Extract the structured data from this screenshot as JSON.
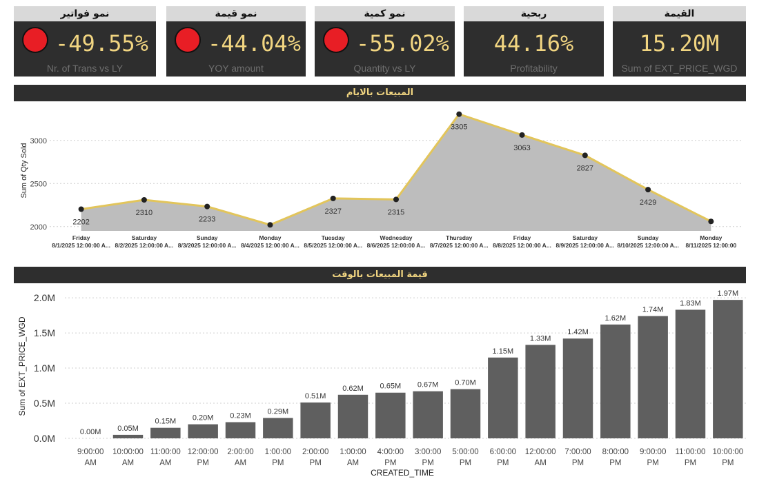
{
  "kpis": [
    {
      "title": "نمو فواتير",
      "value": "-49.55%",
      "subtitle": "Nr. of Trans vs LY",
      "status": "red"
    },
    {
      "title": "نمو قيمة",
      "value": "-44.04%",
      "subtitle": "YOY amount",
      "status": "red"
    },
    {
      "title": "نمو كمية",
      "value": "-55.02%",
      "subtitle": "Quantity vs LY",
      "status": "red"
    },
    {
      "title": "ربحية",
      "value": "44.16%",
      "subtitle": "Profitability"
    },
    {
      "title": "القيمة",
      "value": "15.20M",
      "subtitle": "Sum of EXT_PRICE_WGD"
    }
  ],
  "colors": {
    "panel": "#2e2e2e",
    "accent": "#f1d581",
    "area": "#bdbdbd",
    "line": "#e2c55b",
    "bar": "#5f5f5f",
    "status_red": "#e81e25"
  },
  "chart_data": [
    {
      "type": "area",
      "title": "المبيعات بالايام",
      "ylabel": "Sum of Qty Sold",
      "xlabel": "",
      "ylim": [
        1950,
        3350
      ],
      "yticks": [
        2000,
        2500,
        3000
      ],
      "categories": [
        {
          "day": "Friday",
          "date": "8/1/2025 12:00:00 A..."
        },
        {
          "day": "Saturday",
          "date": "8/2/2025 12:00:00 A..."
        },
        {
          "day": "Sunday",
          "date": "8/3/2025 12:00:00 A..."
        },
        {
          "day": "Monday",
          "date": "8/4/2025 12:00:00 A..."
        },
        {
          "day": "Tuesday",
          "date": "8/5/2025 12:00:00 A..."
        },
        {
          "day": "Wednesday",
          "date": "8/6/2025 12:00:00 A..."
        },
        {
          "day": "Thursday",
          "date": "8/7/2025 12:00:00 A..."
        },
        {
          "day": "Friday",
          "date": "8/8/2025 12:00:00 A..."
        },
        {
          "day": "Saturday",
          "date": "8/9/2025 12:00:00 A..."
        },
        {
          "day": "Sunday",
          "date": "8/10/2025 12:00:00 A..."
        },
        {
          "day": "Monday",
          "date": "8/11/2025 12:00:00"
        }
      ],
      "values": [
        2202,
        2310,
        2233,
        2020,
        2327,
        2315,
        3305,
        3063,
        2827,
        2429,
        2060
      ],
      "labels": [
        "2202",
        "2310",
        "2233",
        "",
        "2327",
        "2315",
        "3305",
        "3063",
        "2827",
        "2429",
        ""
      ],
      "grid": true
    },
    {
      "type": "bar",
      "title": "قيمة المبيعات بالوقت",
      "ylabel": "Sum of EXT_PRICE_WGD",
      "xlabel": "CREATED_TIME",
      "ylim": [
        0,
        2.05
      ],
      "yticks": [
        {
          "v": 0,
          "label": "0.0M"
        },
        {
          "v": 0.5,
          "label": "0.5M"
        },
        {
          "v": 1.0,
          "label": "1.0M"
        },
        {
          "v": 1.5,
          "label": "1.5M"
        },
        {
          "v": 2.0,
          "label": "2.0M"
        }
      ],
      "categories": [
        [
          "9:00:00",
          "AM"
        ],
        [
          "10:00:00",
          "AM"
        ],
        [
          "11:00:00",
          "AM"
        ],
        [
          "12:00:00",
          "PM"
        ],
        [
          "2:00:00",
          "AM"
        ],
        [
          "1:00:00",
          "PM"
        ],
        [
          "2:00:00",
          "PM"
        ],
        [
          "1:00:00",
          "AM"
        ],
        [
          "4:00:00",
          "PM"
        ],
        [
          "3:00:00",
          "PM"
        ],
        [
          "5:00:00",
          "PM"
        ],
        [
          "6:00:00",
          "PM"
        ],
        [
          "12:00:00",
          "AM"
        ],
        [
          "7:00:00",
          "PM"
        ],
        [
          "8:00:00",
          "PM"
        ],
        [
          "9:00:00",
          "PM"
        ],
        [
          "11:00:00",
          "PM"
        ],
        [
          "10:00:00",
          "PM"
        ]
      ],
      "values": [
        0.0,
        0.05,
        0.15,
        0.2,
        0.23,
        0.29,
        0.51,
        0.62,
        0.65,
        0.67,
        0.7,
        1.15,
        1.33,
        1.42,
        1.62,
        1.74,
        1.83,
        1.97
      ],
      "labels": [
        "0.00M",
        "0.05M",
        "0.15M",
        "0.20M",
        "0.23M",
        "0.29M",
        "0.51M",
        "0.62M",
        "0.65M",
        "0.67M",
        "0.70M",
        "1.15M",
        "1.33M",
        "1.42M",
        "1.62M",
        "1.74M",
        "1.83M",
        "1.97M"
      ],
      "grid": true
    }
  ]
}
